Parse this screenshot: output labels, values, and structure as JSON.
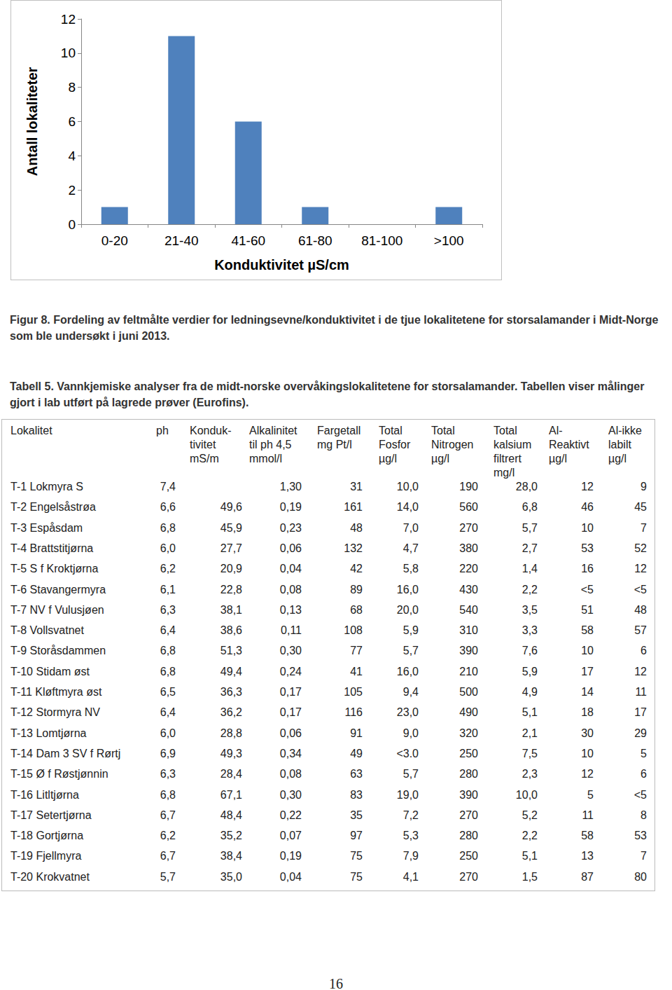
{
  "chart_data": {
    "type": "bar",
    "x_label": "Konduktivitet µS/cm",
    "y_label": "Antall lokaliteter",
    "categories": [
      "0-20",
      "21-40",
      "41-60",
      "61-80",
      "81-100",
      ">100"
    ],
    "values": [
      1,
      11,
      6,
      1,
      0,
      1
    ],
    "color": "#4f81bd",
    "ylim": [
      0,
      12
    ],
    "yticks": [
      0,
      2,
      4,
      6,
      8,
      10,
      12
    ],
    "grid": false
  },
  "figure_caption": "Figur 8. Fordeling av feltmålte verdier for ledningsevne/konduktivitet i de tjue lokalitetene for storsalamander i Midt-Norge som ble undersøkt i juni 2013.",
  "table_caption": "Tabell 5. Vannkjemiske analyser fra de midt-norske overvåkingslokalitetene for storsalamander. Tabellen viser målinger gjort i lab utført på lagrede prøver (Eurofins).",
  "table": {
    "header": [
      "Lokalitet",
      "ph",
      "Konduk-\ntivitet\nmS/m",
      "Alkalinitet\ntil ph 4,5\nmmol/l",
      "Fargetall\nmg Pt/l",
      "Total\nFosfor\nµg/l",
      "Total\nNitrogen\nµg/l",
      "Total\nkalsium\nfiltrert\nmg/l",
      "Al-\nReaktivt\nµg/l",
      "Al-ikke\nlabilt\nµg/l"
    ],
    "rows": [
      [
        "T-1 Lokmyra S",
        "7,4",
        null,
        "1,30",
        "31",
        "10,0",
        "190",
        "28,0",
        "12",
        "9"
      ],
      [
        "T-2 Engelsåstrøa",
        "6,6",
        "49,6",
        "0,19",
        "161",
        "14,0",
        "560",
        "6,8",
        "46",
        "45"
      ],
      [
        "T-3 Espåsdam",
        "6,8",
        "45,9",
        "0,23",
        "48",
        "7,0",
        "270",
        "5,7",
        "10",
        "7"
      ],
      [
        "T-4 Brattstitjørna",
        "6,0",
        "27,7",
        "0,06",
        "132",
        "4,7",
        "380",
        "2,7",
        "53",
        "52"
      ],
      [
        "T-5 S f Kroktjørna",
        "6,2",
        "20,9",
        "0,04",
        "42",
        "5,8",
        "220",
        "1,4",
        "16",
        "12"
      ],
      [
        "T-6 Stavangermyra",
        "6,1",
        "22,8",
        "0,08",
        "89",
        "16,0",
        "430",
        "2,2",
        "<5",
        "<5"
      ],
      [
        "T-7 NV f Vulusjøen",
        "6,3",
        "38,1",
        "0,13",
        "68",
        "20,0",
        "540",
        "3,5",
        "51",
        "48"
      ],
      [
        "T-8 Vollsvatnet",
        "6,4",
        "38,6",
        "0,11",
        "108",
        "5,9",
        "310",
        "3,3",
        "58",
        "57"
      ],
      [
        "T-9 Storåsdammen",
        "6,8",
        "51,3",
        "0,30",
        "77",
        "5,7",
        "390",
        "7,6",
        "10",
        "6"
      ],
      [
        "T-10 Stidam øst",
        "6,8",
        "49,4",
        "0,24",
        "41",
        "16,0",
        "210",
        "5,9",
        "17",
        "12"
      ],
      [
        "T-11 Kløftmyra øst",
        "6,5",
        "36,3",
        "0,17",
        "105",
        "9,4",
        "500",
        "4,9",
        "14",
        "11"
      ],
      [
        "T-12 Stormyra NV",
        "6,4",
        "36,2",
        "0,17",
        "116",
        "23,0",
        "490",
        "5,1",
        "18",
        "17"
      ],
      [
        "T-13 Lomtjørna",
        "6,0",
        "28,8",
        "0,06",
        "91",
        "9,0",
        "320",
        "2,1",
        "30",
        "29"
      ],
      [
        "T-14 Dam 3 SV f Rørtj",
        "6,9",
        "49,3",
        "0,34",
        "49",
        "<3.0",
        "250",
        "7,5",
        "10",
        "5"
      ],
      [
        "T-15 Ø f Røstjønnin",
        "6,3",
        "28,4",
        "0,08",
        "63",
        "5,7",
        "280",
        "2,3",
        "12",
        "6"
      ],
      [
        "T-16 Litltjørna",
        "6,8",
        "67,1",
        "0,30",
        "83",
        "19,0",
        "390",
        "10,0",
        "5",
        "<5"
      ],
      [
        "T-17 Setertjørna",
        "6,7",
        "48,4",
        "0,22",
        "35",
        "7,2",
        "270",
        "5,2",
        "11",
        "8"
      ],
      [
        "T-18 Gortjørna",
        "6,2",
        "35,2",
        "0,07",
        "97",
        "5,3",
        "280",
        "2,2",
        "58",
        "53"
      ],
      [
        "T-19 Fjellmyra",
        "6,7",
        "38,4",
        "0,19",
        "75",
        "7,9",
        "250",
        "5,1",
        "13",
        "7"
      ],
      [
        "T-20 Krokvatnet",
        "5,7",
        "35,0",
        "0,04",
        "75",
        "4,1",
        "270",
        "1,5",
        "87",
        "80"
      ]
    ]
  },
  "page_number": "16"
}
